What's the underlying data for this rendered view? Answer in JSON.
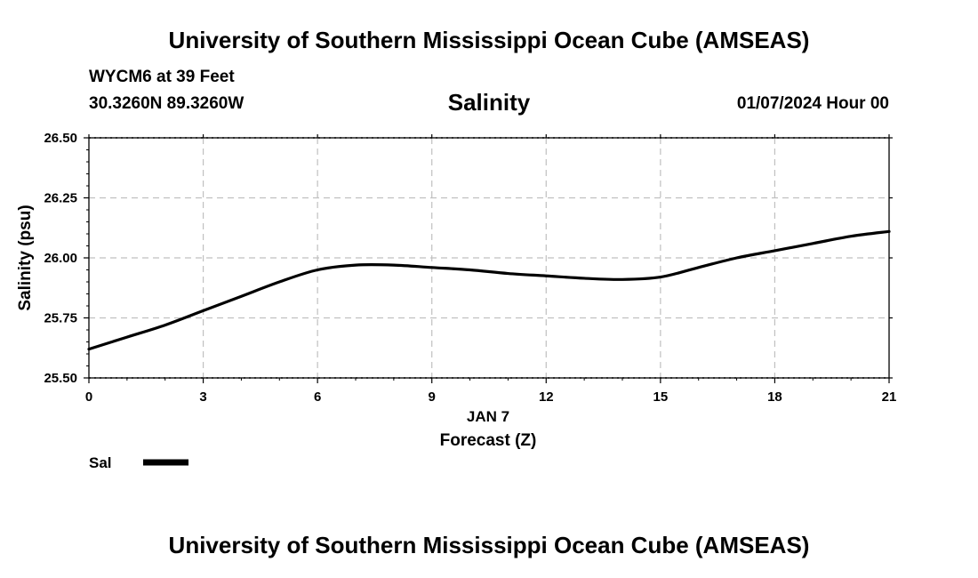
{
  "header": {
    "title": "University of Southern Mississippi Ocean Cube (AMSEAS)",
    "station": "WYCM6 at 39 Feet",
    "coords": "30.3260N  89.3260W",
    "datetime": "01/07/2024 Hour 00"
  },
  "footer": {
    "title": "University of Southern Mississippi Ocean Cube (AMSEAS)"
  },
  "chart_data": {
    "type": "line",
    "title": "Salinity",
    "xlabel": "Forecast (Z)",
    "x_date_label": "JAN 7",
    "ylabel": "Salinity (psu)",
    "xlim": [
      0,
      21
    ],
    "ylim": [
      25.5,
      26.5
    ],
    "xticks": [
      0,
      3,
      6,
      9,
      12,
      15,
      18,
      21
    ],
    "yticks": [
      "25.50",
      "25.75",
      "26.00",
      "26.25",
      "26.50"
    ],
    "grid": true,
    "legend": "bottom-left",
    "series": [
      {
        "name": "Sal",
        "color": "#000000",
        "x": [
          0,
          1,
          2,
          3,
          4,
          5,
          6,
          7,
          8,
          9,
          10,
          11,
          12,
          13,
          14,
          15,
          16,
          17,
          18,
          19,
          20,
          21
        ],
        "y": [
          25.62,
          25.67,
          25.72,
          25.78,
          25.84,
          25.9,
          25.95,
          25.97,
          25.97,
          25.96,
          25.95,
          25.935,
          25.925,
          25.915,
          25.91,
          25.92,
          25.96,
          26.0,
          26.03,
          26.06,
          26.09,
          26.11
        ]
      }
    ]
  }
}
